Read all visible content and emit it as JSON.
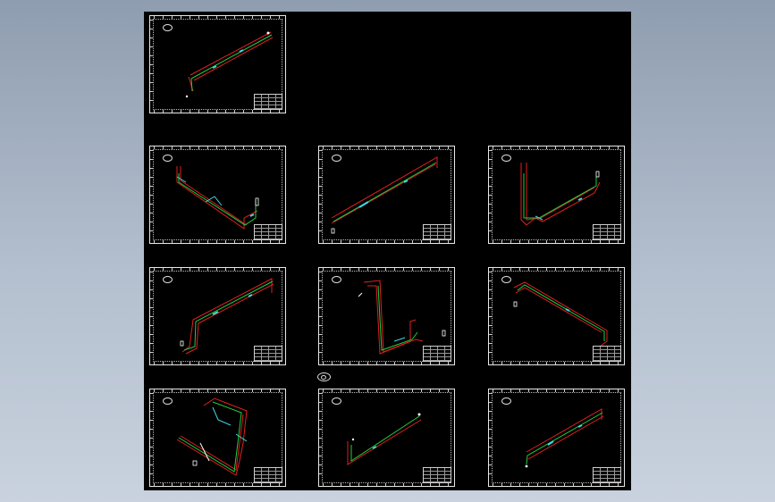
{
  "colors": {
    "background_top": "#8f9db0",
    "background_bottom": "#c9d2de",
    "viewport": "#000000",
    "frame": "#e8e8e8",
    "pipe_outline": "#e02020",
    "pipe_centerline": "#20d040",
    "annotation": "#40d8e8"
  },
  "icons": {
    "sheet_tag": "ellipse-tag-icon",
    "center_mark": "view-center-icon"
  },
  "sheets": [
    {
      "id": "sheet-1",
      "row": 1,
      "col": 1
    },
    {
      "id": "sheet-2",
      "row": 2,
      "col": 1
    },
    {
      "id": "sheet-3",
      "row": 2,
      "col": 2
    },
    {
      "id": "sheet-4",
      "row": 2,
      "col": 3
    },
    {
      "id": "sheet-5",
      "row": 3,
      "col": 1
    },
    {
      "id": "sheet-6",
      "row": 3,
      "col": 2
    },
    {
      "id": "sheet-7",
      "row": 3,
      "col": 3
    },
    {
      "id": "sheet-8",
      "row": 4,
      "col": 1
    },
    {
      "id": "sheet-9",
      "row": 4,
      "col": 2
    },
    {
      "id": "sheet-10",
      "row": 4,
      "col": 3
    }
  ]
}
